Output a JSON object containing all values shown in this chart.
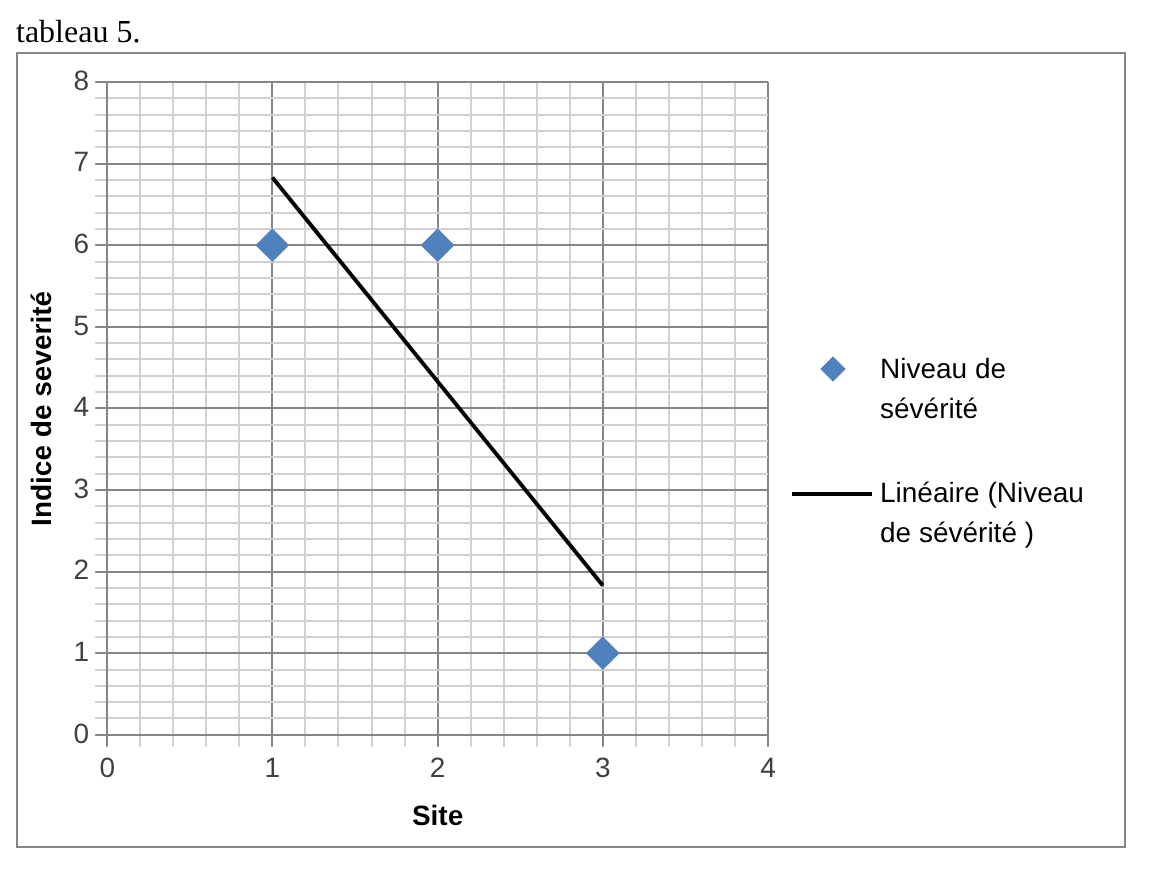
{
  "chart_data": {
    "type": "scatter",
    "xlabel": "Site",
    "ylabel": "Indice de severité",
    "annotations": [
      "tableau 5."
    ],
    "xlim": [
      0,
      4
    ],
    "xticks": [
      0,
      1,
      2,
      3,
      4
    ],
    "ylim": [
      0,
      8
    ],
    "yticks": [
      0,
      1,
      2,
      3,
      4,
      5,
      6,
      7,
      8
    ],
    "grid": true,
    "legend": "right",
    "marker": "diamond",
    "series": [
      {
        "name": "Niveau de sévérité",
        "color": "#4f81bd",
        "x": [
          1,
          2,
          3
        ],
        "values": [
          6,
          6,
          1
        ]
      },
      {
        "name": "Linéaire (Niveau de sévérité )",
        "type": "line",
        "color": "#000000",
        "x": [
          1,
          3
        ],
        "values": [
          6.83,
          1.83
        ],
        "marker": "none",
        "line_style": "solid"
      }
    ]
  }
}
